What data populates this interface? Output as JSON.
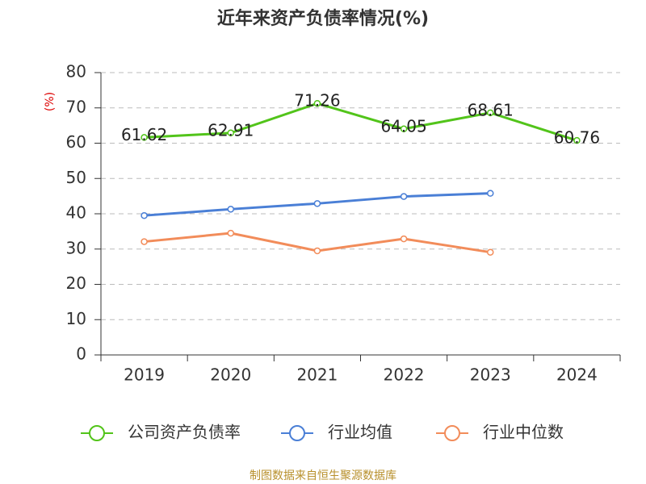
{
  "chart_data": {
    "type": "line",
    "title": "近年来资产负债率情况(%)",
    "y_label": "(%)",
    "source": "制图数据来自恒生聚源数据库",
    "categories": [
      "2019",
      "2020",
      "2021",
      "2022",
      "2023",
      "2024"
    ],
    "series": [
      {
        "name": "公司资产负债率",
        "color": "#52c41a",
        "values": [
          61.62,
          62.91,
          71.26,
          64.05,
          68.61,
          60.76
        ],
        "show_labels": true
      },
      {
        "name": "行业均值",
        "color": "#4a7fd6",
        "values": [
          39.5,
          41.3,
          42.9,
          44.9,
          45.8,
          null
        ],
        "show_labels": false
      },
      {
        "name": "行业中位数",
        "color": "#f28c5a",
        "values": [
          32.1,
          34.5,
          29.5,
          32.9,
          29.1,
          null
        ],
        "show_labels": false
      }
    ],
    "ylim": [
      0,
      80
    ],
    "yticks": [
      0,
      10,
      20,
      30,
      40,
      50,
      60,
      70,
      80
    ],
    "grid": true,
    "legend": "bottom"
  }
}
